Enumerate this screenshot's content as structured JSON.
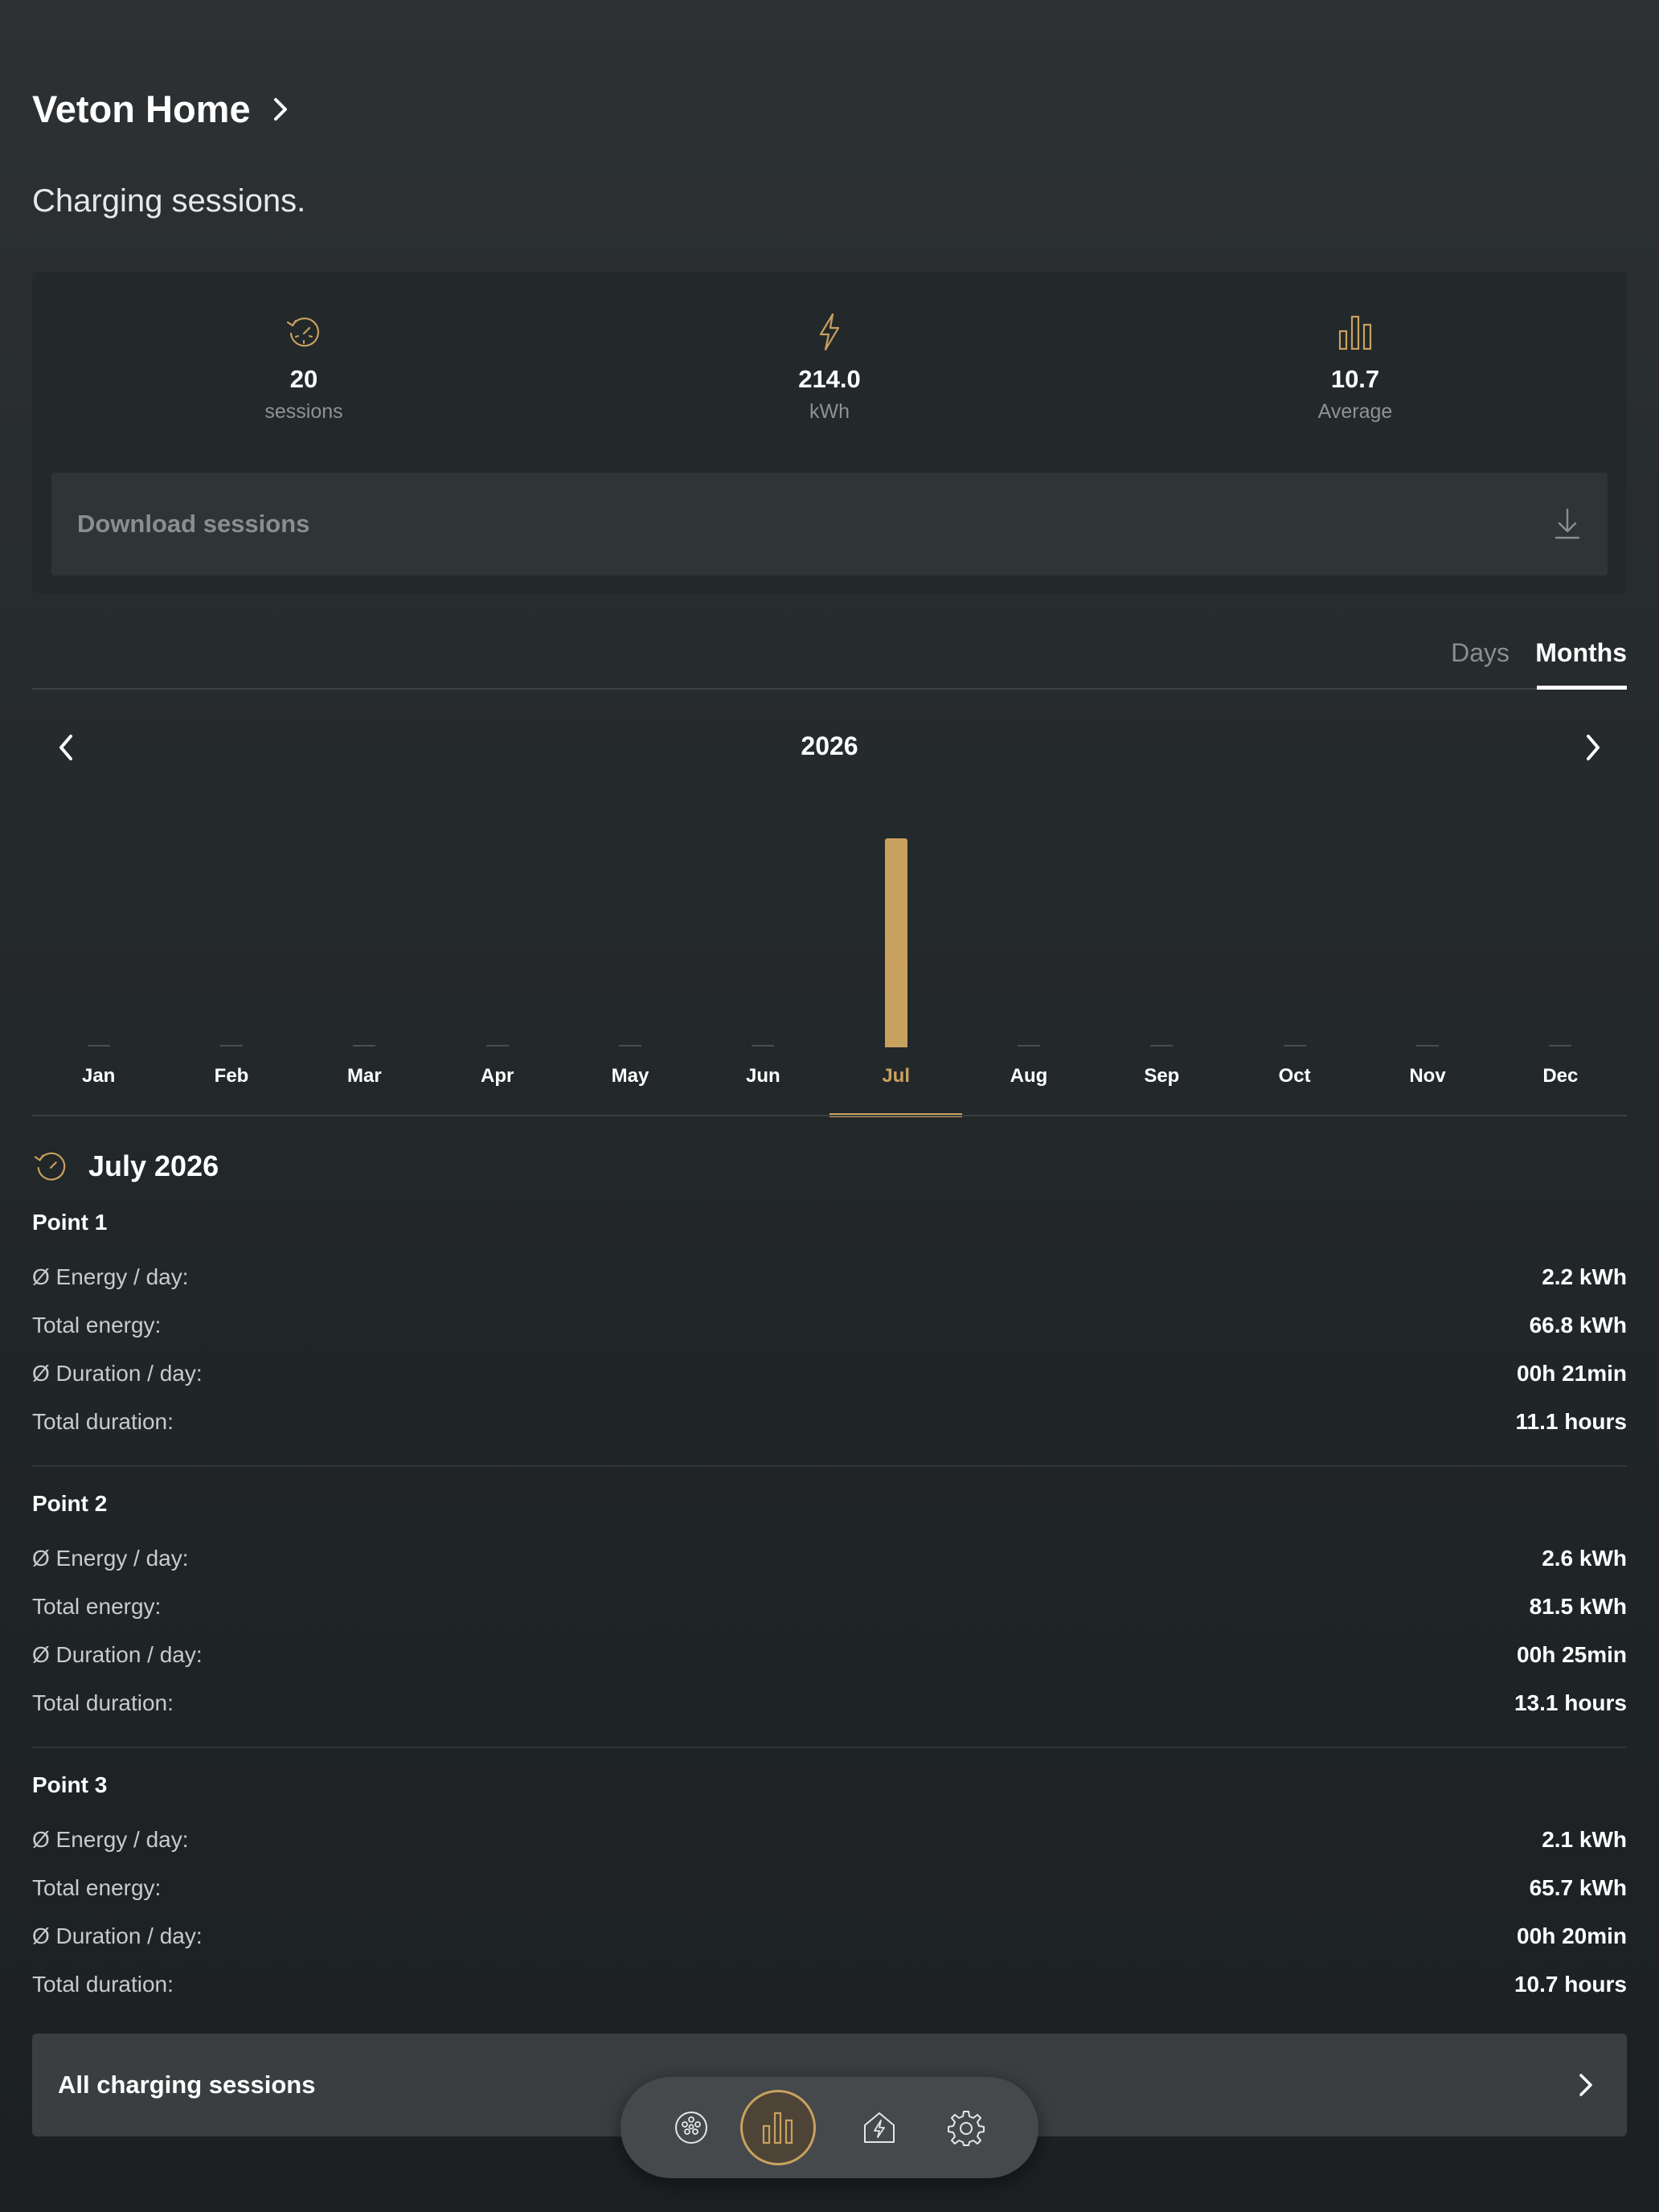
{
  "header": {
    "title": "Veton Home",
    "subtitle": "Charging sessions."
  },
  "stats": [
    {
      "icon": "history-icon",
      "value": "20",
      "unit": "sessions"
    },
    {
      "icon": "lightning-icon",
      "value": "214.0",
      "unit": "kWh"
    },
    {
      "icon": "bar-chart-icon",
      "value": "10.7",
      "unit": "Average"
    }
  ],
  "download": {
    "label": "Download sessions",
    "icon": "download-icon"
  },
  "tabs": [
    {
      "label": "Days",
      "active": false
    },
    {
      "label": "Months",
      "active": true
    }
  ],
  "year": "2026",
  "colors": {
    "accent": "#c9a15f",
    "background": "#22272a",
    "card": "#23282a"
  },
  "chart_data": {
    "type": "bar",
    "categories": [
      "Jan",
      "Feb",
      "Mar",
      "Apr",
      "May",
      "Jun",
      "Jul",
      "Aug",
      "Sep",
      "Oct",
      "Nov",
      "Dec"
    ],
    "values": [
      0,
      0,
      0,
      0,
      0,
      0,
      214.0,
      0,
      0,
      0,
      0,
      0
    ],
    "selected": "Jul",
    "title": "2026",
    "xlabel": "",
    "ylabel": "",
    "grid": false
  },
  "detail": {
    "heading": "July 2026",
    "points": [
      {
        "title": "Point 1",
        "metrics": [
          {
            "label": "Ø Energy / day:",
            "value": "2.2 kWh"
          },
          {
            "label": "Total energy:",
            "value": "66.8 kWh"
          },
          {
            "label": "Ø Duration / day:",
            "value": "00h 21min"
          },
          {
            "label": "Total duration:",
            "value": "11.1 hours"
          }
        ]
      },
      {
        "title": "Point 2",
        "metrics": [
          {
            "label": "Ø Energy / day:",
            "value": "2.6 kWh"
          },
          {
            "label": "Total energy:",
            "value": "81.5 kWh"
          },
          {
            "label": "Ø Duration / day:",
            "value": "00h 25min"
          },
          {
            "label": "Total duration:",
            "value": "13.1 hours"
          }
        ]
      },
      {
        "title": "Point 3",
        "metrics": [
          {
            "label": "Ø Energy / day:",
            "value": "2.1 kWh"
          },
          {
            "label": "Total energy:",
            "value": "65.7 kWh"
          },
          {
            "label": "Ø Duration / day:",
            "value": "00h 20min"
          },
          {
            "label": "Total duration:",
            "value": "10.7 hours"
          }
        ]
      }
    ]
  },
  "all_sessions": {
    "label": "All charging sessions"
  },
  "bottom_nav": [
    {
      "icon": "charger-plug-icon",
      "active": false
    },
    {
      "icon": "statistics-icon",
      "active": true
    },
    {
      "icon": "energy-house-icon",
      "active": false
    },
    {
      "icon": "settings-gear-icon",
      "active": false
    }
  ]
}
